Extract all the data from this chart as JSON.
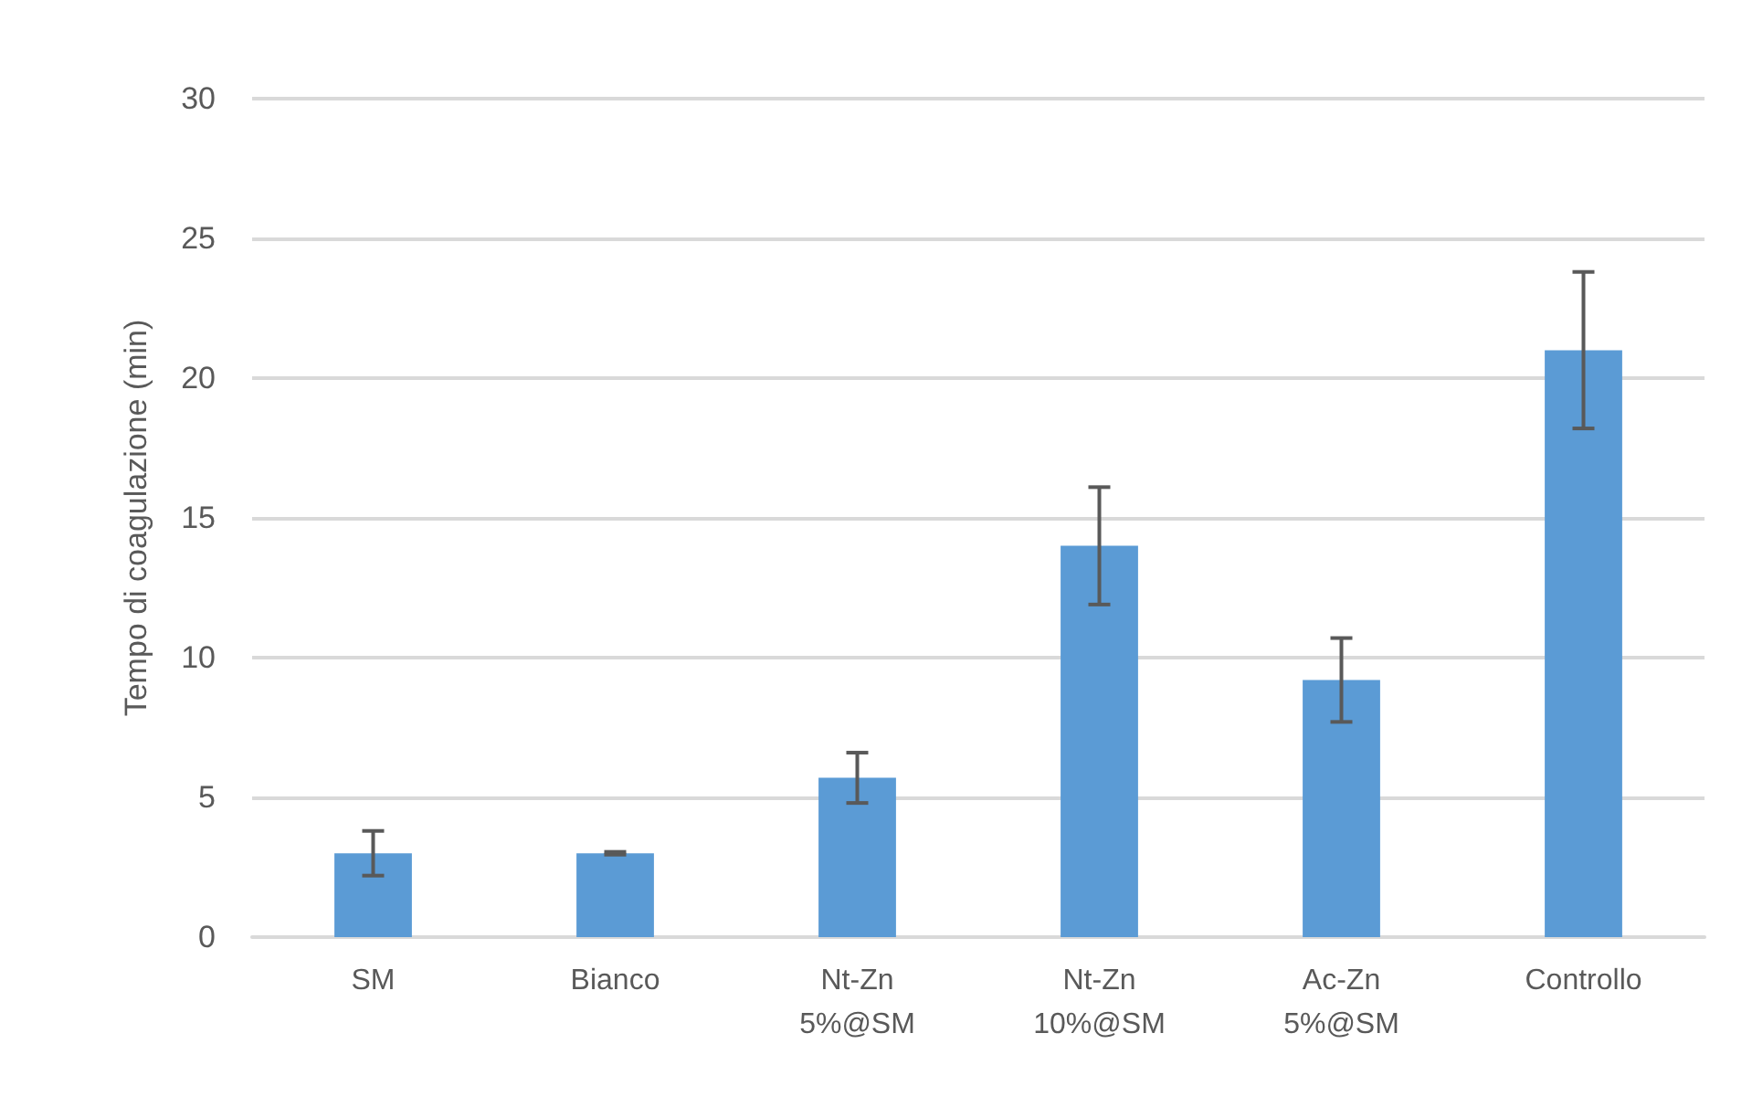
{
  "chart_data": {
    "type": "bar",
    "ylabel": "Tempo di coagulazione (min)",
    "categories": [
      "SM",
      "Bianco",
      "Nt-Zn\n5%@SM",
      "Nt-Zn\n10%@SM",
      "Ac-Zn\n5%@SM",
      "Controllo"
    ],
    "values": [
      3.0,
      3.0,
      5.7,
      14.0,
      9.2,
      21.0
    ],
    "errors": [
      0.8,
      0.05,
      0.9,
      2.1,
      1.5,
      2.8
    ],
    "color": "#5b9bd5",
    "ylim": [
      0,
      30
    ],
    "yticks": [
      0,
      5,
      10,
      15,
      20,
      25,
      30
    ],
    "grid": "y"
  }
}
